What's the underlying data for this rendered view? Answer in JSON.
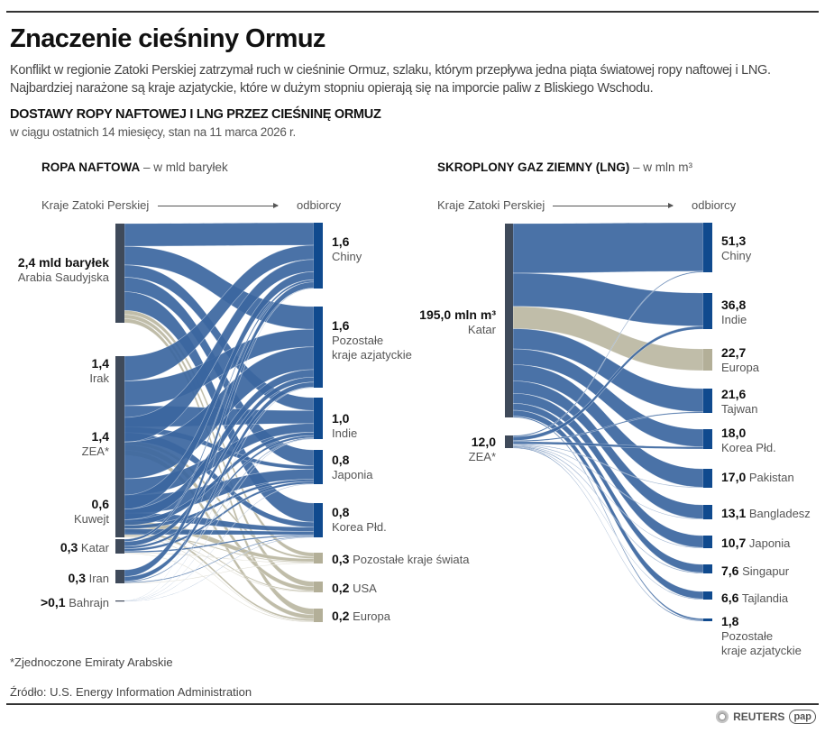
{
  "header": {
    "title": "Znaczenie cieśniny Ormuz",
    "lead": "Konflikt w regionie Zatoki Perskiej zatrzymał ruch w cieśninie Ormuz, szlaku, którym przepływa jedna piąta światowej ropy naftowej i LNG. Najbardziej narażone są kraje azjatyckie, które w dużym stopniu opierają się na imporcie paliw z Bliskiego Wschodu.",
    "subtitle": "DOSTAWY ROPY NAFTOWEJ I LNG PRZEZ CIEŚNINĘ ORMUZ",
    "subnote": "w ciągu ostatnich 14 miesięcy, stan na 11 marca 2026 r."
  },
  "oil": {
    "title_bold": "ROPA NAFTOWA",
    "title_rest": " – w mld baryłek",
    "from_label": "Kraje Zatoki Perskiej",
    "to_label": "odbiorcy"
  },
  "lng": {
    "title_bold": "SKROPLONY GAZ ZIEMNY (LNG)",
    "title_rest": " – w mln m³",
    "from_label": "Kraje Zatoki Perskiej",
    "to_label": "odbiorcy"
  },
  "colors": {
    "source_node": "#3f4a5a",
    "flow_asia": "#3b66a0",
    "dest_node_asia": "#104a8e",
    "flow_other": "#bdb9a4",
    "dest_node_other": "#b3af98"
  },
  "chart_data": [
    {
      "type": "sankey",
      "title": "ROPA NAFTOWA – w mld baryłek",
      "sources": [
        {
          "name": "Arabia Saudyjska",
          "value": "2,4 mld baryłek",
          "v": 2.4
        },
        {
          "name": "Irak",
          "value": "1,4",
          "v": 1.4
        },
        {
          "name": "ZEA*",
          "value": "1,4",
          "v": 1.4
        },
        {
          "name": "Kuwejt",
          "value": "0,6",
          "v": 0.6
        },
        {
          "name": "Katar",
          "value": "0,3",
          "v": 0.3
        },
        {
          "name": "Iran",
          "value": "0,3",
          "v": 0.3
        },
        {
          "name": "Bahrajn",
          "value": ">0,1",
          "v": 0.05
        }
      ],
      "targets": [
        {
          "name": "Chiny",
          "value": "1,6",
          "v": 1.6,
          "group": "asia"
        },
        {
          "name": "Pozostałe kraje azjatyckie",
          "value": "1,6",
          "v": 1.6,
          "group": "asia"
        },
        {
          "name": "Indie",
          "value": "1,0",
          "v": 1.0,
          "group": "asia"
        },
        {
          "name": "Japonia",
          "value": "0,8",
          "v": 0.8,
          "group": "asia"
        },
        {
          "name": "Korea Płd.",
          "value": "0,8",
          "v": 0.8,
          "group": "asia"
        },
        {
          "name": "Pozostałe kraje świata",
          "value": "0,3",
          "v": 0.3,
          "group": "other"
        },
        {
          "name": "USA",
          "value": "0,2",
          "v": 0.2,
          "group": "other"
        },
        {
          "name": "Europa",
          "value": "0,2",
          "v": 0.2,
          "group": "other"
        }
      ]
    },
    {
      "type": "sankey",
      "title": "SKROPLONY GAZ ZIEMNY (LNG) – w mln m³",
      "sources": [
        {
          "name": "Katar",
          "value": "195,0 mln m³",
          "v": 195.0
        },
        {
          "name": "ZEA*",
          "value": "12,0",
          "v": 12.0
        }
      ],
      "targets": [
        {
          "name": "Chiny",
          "value": "51,3",
          "v": 51.3,
          "group": "asia"
        },
        {
          "name": "Indie",
          "value": "36,8",
          "v": 36.8,
          "group": "asia"
        },
        {
          "name": "Europa",
          "value": "22,7",
          "v": 22.7,
          "group": "other"
        },
        {
          "name": "Tajwan",
          "value": "21,6",
          "v": 21.6,
          "group": "asia"
        },
        {
          "name": "Korea Płd.",
          "value": "18,0",
          "v": 18.0,
          "group": "asia"
        },
        {
          "name": "Pakistan",
          "value": "17,0",
          "v": 17.0,
          "group": "asia"
        },
        {
          "name": "Bangladesz",
          "value": "13,1",
          "v": 13.1,
          "group": "asia"
        },
        {
          "name": "Japonia",
          "value": "10,7",
          "v": 10.7,
          "group": "asia"
        },
        {
          "name": "Singapur",
          "value": "7,6",
          "v": 7.6,
          "group": "asia"
        },
        {
          "name": "Tajlandia",
          "value": "6,6",
          "v": 6.6,
          "group": "asia"
        },
        {
          "name": "Pozostałe kraje azjatyckie",
          "value": "1,8",
          "v": 1.8,
          "group": "asia"
        }
      ]
    }
  ],
  "labels": {
    "oil_sources": [
      {
        "value": "2,4 mld baryłek",
        "name": "Arabia Saudyjska"
      },
      {
        "value": "1,4",
        "name": "Irak"
      },
      {
        "value": "1,4",
        "name": "ZEA*"
      },
      {
        "value": "0,6",
        "name": "Kuwejt"
      },
      {
        "value": "0,3",
        "name": "Katar"
      },
      {
        "value": "0,3",
        "name": "Iran"
      },
      {
        "value": ">0,1",
        "name": "Bahrajn"
      }
    ],
    "oil_targets": [
      {
        "value": "1,6",
        "name": "Chiny"
      },
      {
        "value": "1,6",
        "name": "Pozostałe",
        "name2": "kraje azjatyckie"
      },
      {
        "value": "1,0",
        "name": "Indie"
      },
      {
        "value": "0,8",
        "name": "Japonia"
      },
      {
        "value": "0,8",
        "name": "Korea Płd."
      },
      {
        "value": "0,3",
        "name": "Pozostałe kraje świata"
      },
      {
        "value": "0,2",
        "name": "USA"
      },
      {
        "value": "0,2",
        "name": "Europa"
      }
    ],
    "lng_sources": [
      {
        "value": "195,0 mln m³",
        "name": "Katar"
      },
      {
        "value": "12,0",
        "name": "ZEA*"
      }
    ],
    "lng_targets": [
      {
        "value": "51,3",
        "name": "Chiny"
      },
      {
        "value": "36,8",
        "name": "Indie"
      },
      {
        "value": "22,7",
        "name": "Europa"
      },
      {
        "value": "21,6",
        "name": "Tajwan"
      },
      {
        "value": "18,0",
        "name": "Korea Płd."
      },
      {
        "value": "17,0",
        "name": "Pakistan"
      },
      {
        "value": "13,1",
        "name": "Bangladesz"
      },
      {
        "value": "10,7",
        "name": "Japonia"
      },
      {
        "value": "7,6",
        "name": "Singapur"
      },
      {
        "value": "6,6",
        "name": "Tajlandia"
      },
      {
        "value": "1,8",
        "name": "Pozostałe",
        "name2": "kraje azjatyckie"
      }
    ]
  },
  "footer": {
    "footnote": "*Zjednoczone Emiraty Arabskie",
    "source": "Źródło: U.S. Energy Information Administration",
    "logo_reuters": "REUTERS",
    "logo_pap": "pap"
  }
}
